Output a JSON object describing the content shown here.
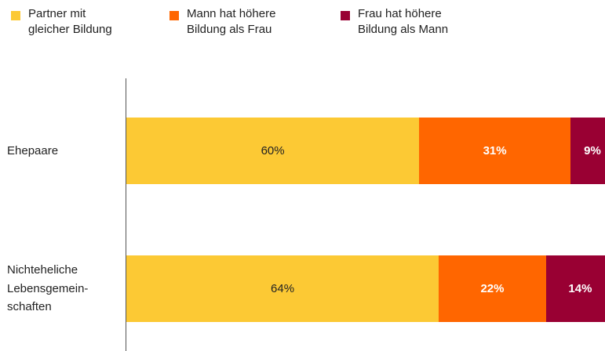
{
  "chart_data": {
    "type": "stacked-bar-horizontal",
    "categories": [
      "Ehepaare",
      "Nichteheliche\nLebensgemein-\nschaften"
    ],
    "series": [
      {
        "name": "Partner mit\ngleicher Bildung",
        "color": "#fcc934",
        "values": [
          60,
          64
        ],
        "value_labels": [
          "60%",
          "64%"
        ]
      },
      {
        "name": "Mann hat höhere\nBildung als Frau",
        "color": "#ff6600",
        "values": [
          31,
          22
        ],
        "value_labels": [
          "31%",
          "22%"
        ]
      },
      {
        "name": "Frau hat höhere\nBildung als Mann",
        "color": "#990033",
        "values": [
          9,
          14
        ],
        "value_labels": [
          "9%",
          "14%"
        ]
      }
    ],
    "xlim": [
      0,
      100
    ]
  }
}
